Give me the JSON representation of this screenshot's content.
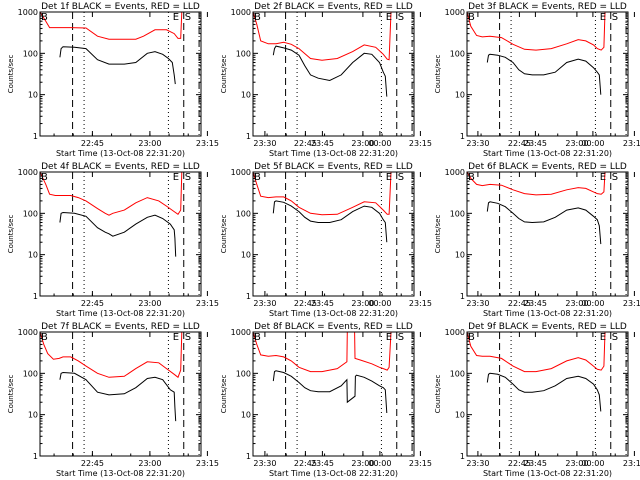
{
  "figure": {
    "layout": "3x3 grid of light-curve panels",
    "common": {
      "xlabel": "Start Time (13-Oct-08 22:31:20)",
      "ylabel": "Counts/sec",
      "yscale": "log",
      "ylim": [
        1,
        1000
      ],
      "ytick_labels": [
        "1",
        "10",
        "100",
        "1000"
      ],
      "xtick_labels": [
        "22:45",
        "23:00",
        "23:15",
        "23:30",
        "23:45",
        "00:00"
      ],
      "xlim_minutes_after_2231": [
        0,
        42
      ],
      "markers": {
        "B": "B",
        "E": "E",
        "S": "S"
      },
      "series_colors": {
        "events": "#000000",
        "lld": "#ff0000"
      },
      "vlines": {
        "dashed_minutes": [
          8.5,
          37.5
        ],
        "dotted_minutes": [
          11.5,
          33.5
        ],
        "dashdot_minutes": [
          41.5
        ]
      }
    }
  },
  "chart_data": [
    {
      "type": "line",
      "title": "Det 1f BLACK = Events, RED = LLD",
      "series": [
        {
          "name": "LLD (red)",
          "x": [
            0,
            1.5,
            2.5,
            4,
            8,
            12,
            15,
            18,
            22,
            25,
            27,
            30,
            33,
            35,
            36,
            36.7,
            37
          ],
          "y": [
            1000,
            600,
            420,
            420,
            420,
            410,
            260,
            220,
            220,
            220,
            260,
            370,
            370,
            300,
            230,
            230,
            1000
          ]
        },
        {
          "name": "Events (black)",
          "x": [
            5.2,
            5.5,
            6,
            9,
            12,
            15,
            18,
            22,
            25,
            28,
            30,
            32,
            33.5,
            34.5,
            35,
            35.3
          ],
          "y": [
            80,
            130,
            145,
            140,
            130,
            70,
            55,
            55,
            60,
            100,
            110,
            95,
            75,
            60,
            30,
            18
          ]
        }
      ]
    },
    {
      "type": "line",
      "title": "Det 2f BLACK = Events, RED = LLD",
      "series": [
        {
          "name": "LLD (red)",
          "x": [
            0,
            1,
            2,
            4,
            6,
            8,
            10,
            12,
            15,
            18,
            22,
            26,
            29,
            32,
            34,
            35,
            35.5,
            36
          ],
          "y": [
            1000,
            500,
            200,
            170,
            170,
            185,
            165,
            130,
            75,
            68,
            75,
            110,
            160,
            140,
            95,
            72,
            70,
            1000
          ]
        },
        {
          "name": "Events (black)",
          "x": [
            5.3,
            5.6,
            6,
            8,
            10,
            12,
            13.5,
            15,
            17,
            20,
            23,
            26,
            29,
            31,
            33,
            34,
            34.5,
            34.9
          ],
          "y": [
            90,
            130,
            150,
            135,
            120,
            90,
            50,
            30,
            25,
            22,
            30,
            60,
            100,
            95,
            60,
            35,
            28,
            9
          ]
        }
      ]
    },
    {
      "type": "line",
      "title": "Det 3f BLACK = Events, RED = LLD",
      "series": [
        {
          "name": "LLD (red)",
          "x": [
            0,
            1,
            2.5,
            4,
            6,
            9,
            12,
            15,
            18,
            22,
            26,
            29,
            31,
            33,
            34,
            35,
            35.7,
            36
          ],
          "y": [
            1000,
            450,
            270,
            250,
            260,
            240,
            165,
            125,
            120,
            130,
            170,
            215,
            200,
            160,
            130,
            120,
            140,
            1000
          ]
        },
        {
          "name": "Events (black)",
          "x": [
            5.3,
            5.6,
            6,
            8,
            10,
            12,
            13.5,
            15,
            17,
            20,
            23,
            26,
            29,
            31,
            33,
            34,
            34.5,
            34.9
          ],
          "y": [
            60,
            90,
            95,
            90,
            80,
            60,
            40,
            32,
            30,
            30,
            35,
            60,
            72,
            65,
            45,
            35,
            30,
            10
          ]
        }
      ]
    },
    {
      "type": "line",
      "title": "Det 4f BLACK = Events, RED = LLD",
      "series": [
        {
          "name": "LLD (red)",
          "x": [
            0,
            1.5,
            2.5,
            4,
            8,
            10,
            12,
            15,
            17,
            18,
            19,
            22,
            25,
            28,
            31,
            33,
            35,
            36,
            36.7,
            37
          ],
          "y": [
            1000,
            500,
            290,
            270,
            270,
            240,
            200,
            130,
            100,
            90,
            100,
            120,
            180,
            240,
            200,
            150,
            110,
            95,
            120,
            1000
          ]
        },
        {
          "name": "Events (black)",
          "x": [
            5.2,
            5.5,
            6,
            9,
            12,
            15,
            17,
            18,
            19,
            22,
            25,
            28,
            30,
            32,
            34,
            35,
            35.2,
            35.4
          ],
          "y": [
            60,
            100,
            105,
            100,
            85,
            45,
            35,
            32,
            28,
            35,
            55,
            80,
            90,
            75,
            55,
            40,
            25,
            9
          ]
        }
      ]
    },
    {
      "type": "line",
      "title": "Det 5f BLACK = Events, RED = LLD",
      "series": [
        {
          "name": "LLD (red)",
          "x": [
            0,
            1,
            2,
            4,
            6,
            8,
            10,
            12,
            15,
            18,
            22,
            26,
            29,
            32,
            34,
            35,
            35.5,
            36
          ],
          "y": [
            1000,
            500,
            260,
            240,
            250,
            250,
            200,
            140,
            100,
            92,
            95,
            140,
            190,
            180,
            120,
            95,
            95,
            1000
          ]
        },
        {
          "name": "Events (black)",
          "x": [
            5.3,
            5.6,
            6,
            8,
            10,
            12,
            13.5,
            15,
            17,
            20,
            23,
            26,
            29,
            31,
            33,
            34,
            34.5,
            34.9
          ],
          "y": [
            100,
            190,
            200,
            185,
            150,
            110,
            80,
            65,
            60,
            60,
            70,
            110,
            150,
            140,
            100,
            70,
            60,
            20
          ]
        }
      ]
    },
    {
      "type": "line",
      "title": "Det 6f BLACK = Events, RED = LLD",
      "series": [
        {
          "name": "LLD (red)",
          "x": [
            0,
            1,
            2.5,
            4,
            6,
            9,
            12,
            15,
            18,
            22,
            26,
            29,
            31,
            33,
            34,
            35,
            35.7,
            36
          ],
          "y": [
            1000,
            700,
            500,
            470,
            500,
            480,
            370,
            300,
            280,
            290,
            370,
            420,
            400,
            330,
            300,
            290,
            330,
            1000
          ]
        },
        {
          "name": "Events (black)",
          "x": [
            5.3,
            5.6,
            6,
            8,
            10,
            12,
            13.5,
            15,
            17,
            20,
            23,
            26,
            29,
            31,
            33,
            34,
            34.5,
            34.9
          ],
          "y": [
            110,
            180,
            190,
            175,
            145,
            100,
            75,
            62,
            60,
            62,
            80,
            120,
            135,
            120,
            85,
            70,
            50,
            18
          ]
        }
      ]
    },
    {
      "type": "line",
      "title": "Det 7f BLACK = Events, RED = LLD",
      "series": [
        {
          "name": "LLD (red)",
          "x": [
            0,
            1,
            2,
            3.5,
            5,
            6,
            8,
            10,
            12,
            15,
            18,
            22,
            25,
            28,
            31,
            33,
            35,
            36,
            36.7,
            37
          ],
          "y": [
            1000,
            500,
            300,
            220,
            230,
            250,
            250,
            200,
            150,
            100,
            80,
            85,
            130,
            190,
            180,
            130,
            95,
            80,
            120,
            1000
          ]
        },
        {
          "name": "Events (black)",
          "x": [
            5.2,
            5.5,
            6,
            9,
            12,
            15,
            18,
            22,
            25,
            28,
            30,
            32,
            34,
            35,
            35.2,
            35.4
          ],
          "y": [
            70,
            100,
            105,
            100,
            70,
            35,
            30,
            32,
            45,
            75,
            80,
            70,
            40,
            35,
            15,
            7
          ]
        }
      ]
    },
    {
      "type": "line",
      "title": "Det 8f BLACK = Events, RED = LLD",
      "series": [
        {
          "name": "LLD (red)",
          "x": [
            0,
            1,
            2,
            4,
            6,
            8,
            10,
            12,
            15,
            18,
            22,
            24.5,
            24.6,
            26.5,
            26.6,
            28,
            31,
            33,
            34,
            35,
            35.5,
            36
          ],
          "y": [
            1000,
            500,
            280,
            260,
            270,
            250,
            200,
            140,
            110,
            110,
            130,
            190,
            1000,
            1000,
            230,
            210,
            170,
            140,
            130,
            120,
            140,
            1000
          ]
        },
        {
          "name": "Events (black)",
          "x": [
            5.3,
            5.6,
            6,
            8,
            10,
            12,
            13.5,
            15,
            17,
            20,
            23,
            24.5,
            24.6,
            26.6,
            26.7,
            27,
            29,
            31,
            33,
            34,
            34.5,
            34.9
          ],
          "y": [
            65,
            110,
            115,
            105,
            85,
            60,
            45,
            38,
            36,
            36,
            50,
            70,
            20,
            28,
            85,
            90,
            80,
            65,
            50,
            45,
            40,
            11
          ]
        }
      ]
    },
    {
      "type": "line",
      "title": "Det 9f BLACK = Events, RED = LLD",
      "series": [
        {
          "name": "LLD (red)",
          "x": [
            0,
            1,
            2.5,
            4,
            6,
            9,
            12,
            15,
            18,
            22,
            26,
            29,
            31,
            33,
            34,
            35,
            35.7,
            36
          ],
          "y": [
            1000,
            450,
            270,
            260,
            260,
            230,
            150,
            110,
            110,
            130,
            200,
            240,
            210,
            150,
            125,
            120,
            150,
            1000
          ]
        },
        {
          "name": "Events (black)",
          "x": [
            5.3,
            5.6,
            6,
            8,
            10,
            12,
            13.5,
            15,
            17,
            20,
            23,
            26,
            29,
            31,
            33,
            34,
            34.5,
            34.9
          ],
          "y": [
            60,
            95,
            100,
            95,
            80,
            55,
            40,
            35,
            35,
            38,
            50,
            75,
            85,
            75,
            55,
            40,
            30,
            12
          ]
        }
      ]
    }
  ]
}
